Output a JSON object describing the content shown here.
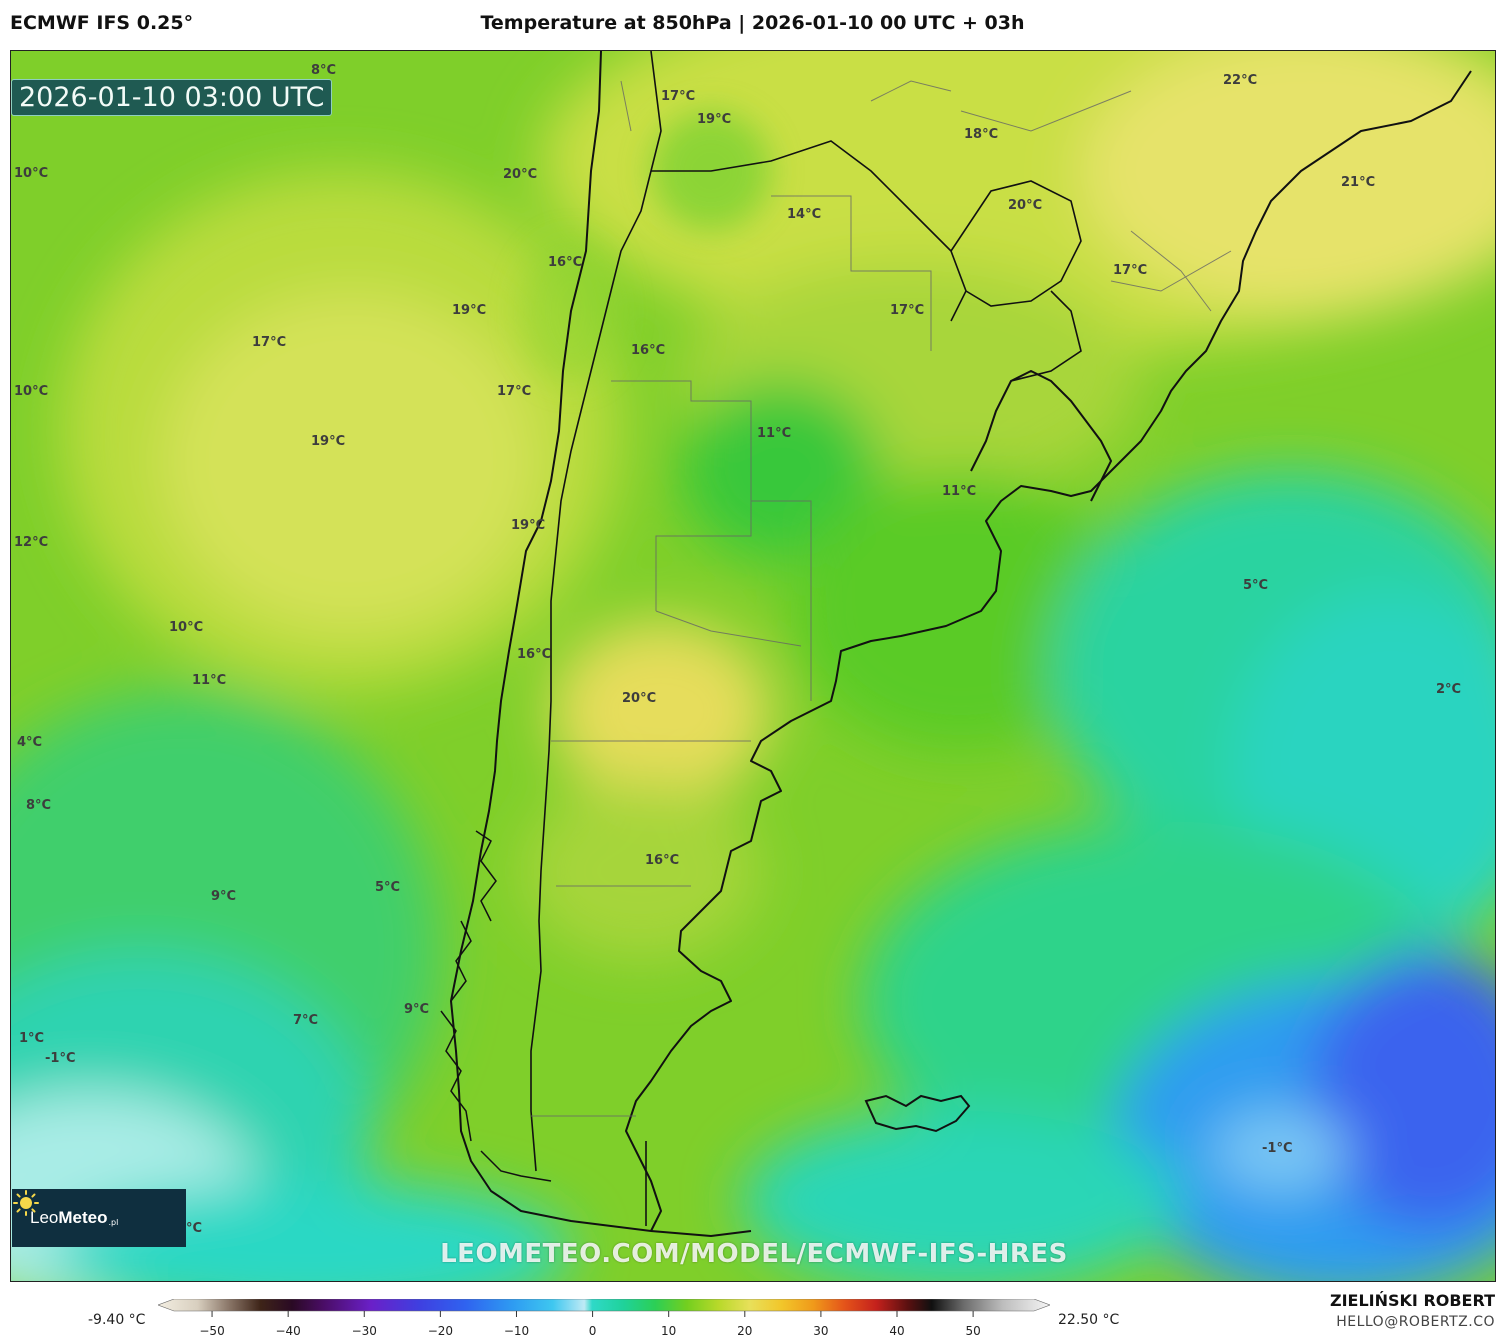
{
  "header": {
    "model": "ECMWF IFS 0.25°",
    "title": "Temperature at 850hPa | 2026-01-10 00 UTC + 03h"
  },
  "map": {
    "valid_time": "2026-01-10 03:00 UTC",
    "watermark": "LEOMETEO.COM/MODEL/ECMWF-IFS-HRES",
    "labels": [
      "8°C",
      "10°C",
      "10°C",
      "12°C",
      "10°C",
      "11°C",
      "4°C",
      "8°C",
      "9°C",
      "5°C",
      "1°C",
      "-1°C",
      "7°C",
      "9°C",
      "°C",
      "20°C",
      "17°C",
      "19°C",
      "19°C",
      "17°C",
      "16°C",
      "19°C",
      "16°C",
      "17°C",
      "19°C",
      "16°C",
      "20°C",
      "16°C",
      "14°C",
      "11°C",
      "17°C",
      "18°C",
      "22°C",
      "20°C",
      "21°C",
      "17°C",
      "11°C",
      "5°C",
      "2°C",
      "-1°C"
    ]
  },
  "logo": {
    "brand_light": "Leo",
    "brand_bold": "Meteo",
    "tld": ".pl",
    "icon": "sun-icon"
  },
  "colorbar": {
    "min_label": "-9.40 °C",
    "max_label": "22.50 °C",
    "ticks": [
      "−50",
      "−40",
      "−30",
      "−20",
      "−10",
      "0",
      "10",
      "20",
      "30",
      "40",
      "50"
    ],
    "range": [
      -55,
      58
    ],
    "stops": [
      {
        "v": -55,
        "c": "#f3eee2"
      },
      {
        "v": -50,
        "c": "#d8cfbf"
      },
      {
        "v": -46,
        "c": "#8a7668"
      },
      {
        "v": -42,
        "c": "#3e2418"
      },
      {
        "v": -38,
        "c": "#2a0a24"
      },
      {
        "v": -34,
        "c": "#4a0d66"
      },
      {
        "v": -28,
        "c": "#6a20c8"
      },
      {
        "v": -22,
        "c": "#3f3fe0"
      },
      {
        "v": -16,
        "c": "#2f63f0"
      },
      {
        "v": -10,
        "c": "#2e9cf2"
      },
      {
        "v": -5,
        "c": "#3ec7f0"
      },
      {
        "v": -1,
        "c": "#bfeaf5"
      },
      {
        "v": 0,
        "c": "#2fd9c8"
      },
      {
        "v": 4,
        "c": "#1fd29a"
      },
      {
        "v": 8,
        "c": "#2ccf55"
      },
      {
        "v": 12,
        "c": "#73cf1f"
      },
      {
        "v": 16,
        "c": "#b8d92a"
      },
      {
        "v": 20,
        "c": "#e8e05a"
      },
      {
        "v": 24,
        "c": "#f2c62a"
      },
      {
        "v": 28,
        "c": "#f09a1a"
      },
      {
        "v": 32,
        "c": "#e4531a"
      },
      {
        "v": 36,
        "c": "#c4211c"
      },
      {
        "v": 40,
        "c": "#5a1010"
      },
      {
        "v": 43,
        "c": "#101010"
      },
      {
        "v": 47,
        "c": "#6a6a6a"
      },
      {
        "v": 52,
        "c": "#bdbdbd"
      },
      {
        "v": 58,
        "c": "#f5f5f5"
      }
    ]
  },
  "footer": {
    "author": "ZIELIŃSKI ROBERT",
    "contact": "HELLO@ROBERTZ.CO"
  }
}
